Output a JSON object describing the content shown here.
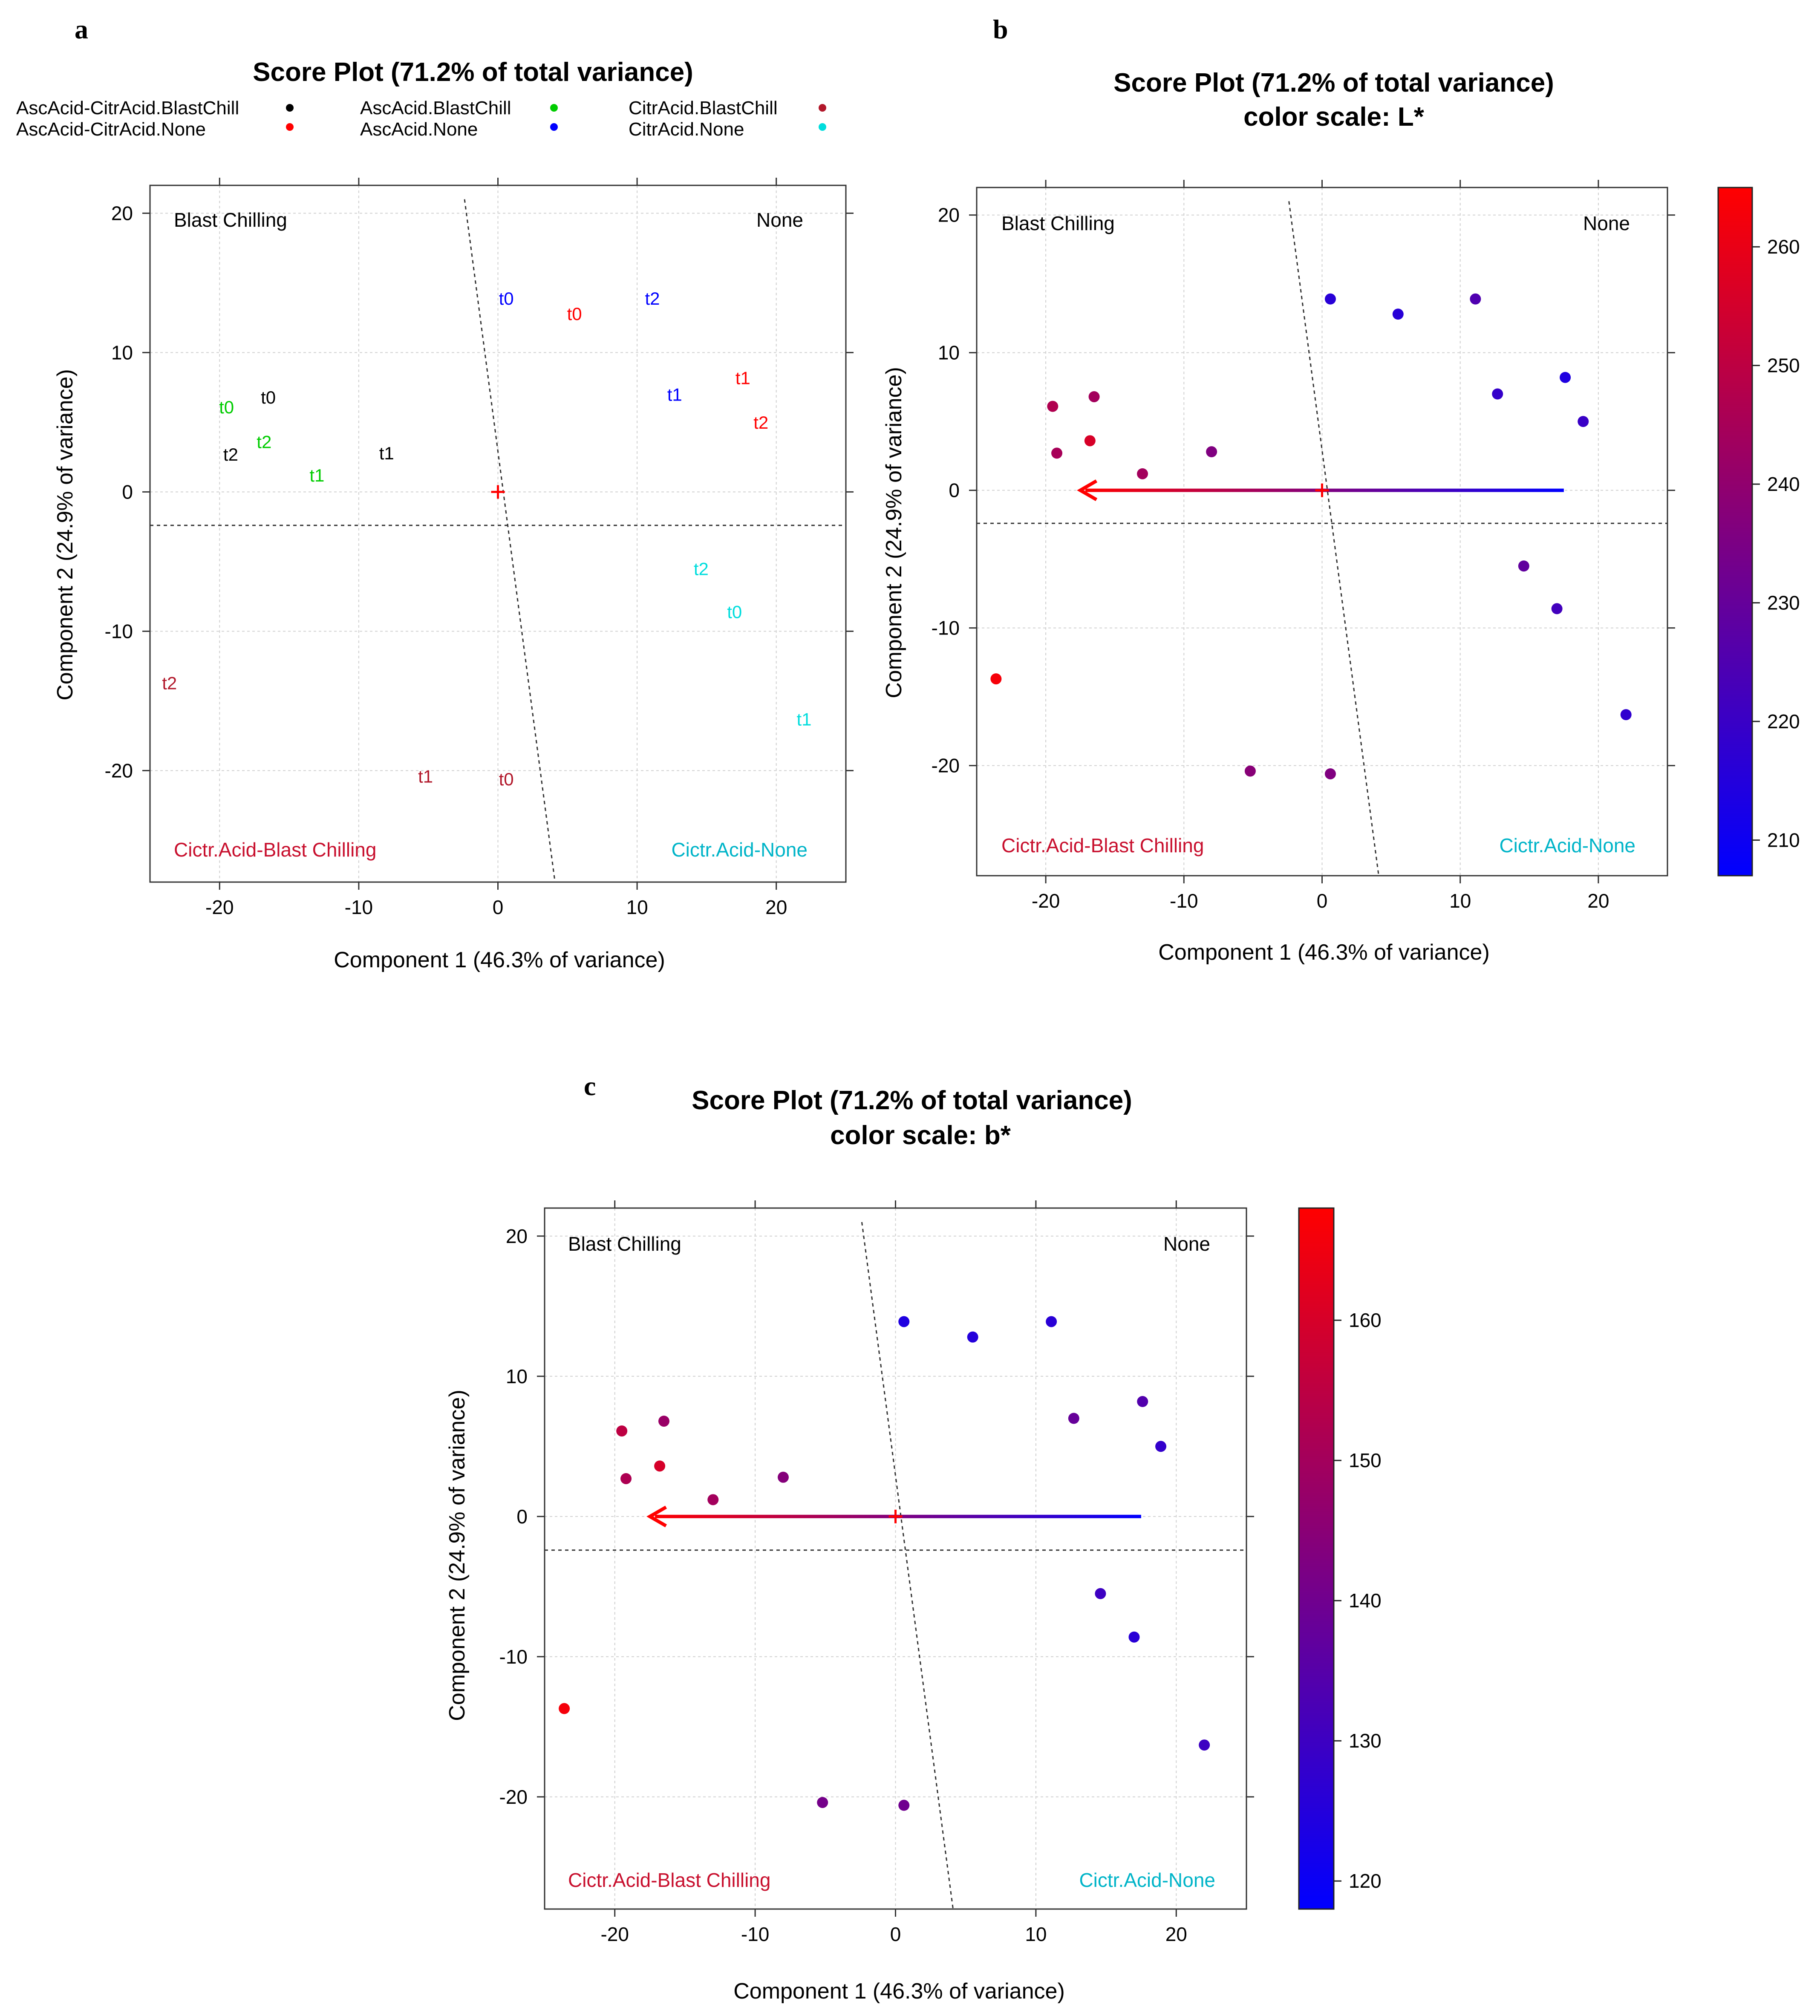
{
  "panels": {
    "a": {
      "label": "a",
      "title": "Score Plot (71.2% of total variance)",
      "subtitle": "",
      "xlabel": "Component 1 (46.3% of variance)",
      "ylabel": "Component 2 (24.9% of variance)",
      "corners": {
        "top_left": "Blast Chilling",
        "top_right": "None",
        "bottom_left": "Cictr.Acid-Blast Chilling",
        "bottom_right": "Cictr.Acid-None"
      }
    },
    "b": {
      "label": "b",
      "title": "Score Plot (71.2% of total variance)",
      "subtitle": "color scale: L*",
      "xlabel": "Component 1 (46.3% of variance)",
      "ylabel": "Component 2 (24.9% of variance)",
      "corners": {
        "top_left": "Blast Chilling",
        "top_right": "None",
        "bottom_left": "Cictr.Acid-Blast Chilling",
        "bottom_right": "Cictr.Acid-None"
      }
    },
    "c": {
      "label": "c",
      "title": "Score Plot (71.2% of total variance)",
      "subtitle": "color scale: b*",
      "xlabel": "Component 1 (46.3% of variance)",
      "ylabel": "Component 2 (24.9% of variance)",
      "corners": {
        "top_left": "Blast Chilling",
        "top_right": "None",
        "bottom_left": "Cictr.Acid-Blast Chilling",
        "bottom_right": "Cictr.Acid-None"
      }
    }
  },
  "colors": {
    "AscAcid-CitrAcid.BlastChill": "#000000",
    "AscAcid-CitrAcid.None": "#ff0000",
    "AscAcid.BlastChill": "#00cc00",
    "AscAcid.None": "#0000ff",
    "CitrAcid.BlastChill": "#b2182b",
    "CitrAcid.None": "#00dddd",
    "corner_dark": "#000000",
    "corner_red": "#c8102e",
    "corner_cyan": "#00b4c8",
    "scale_low": "#0000ff",
    "scale_high": "#ff0000"
  },
  "chart_data": [
    {
      "panel": "a",
      "type": "scatter",
      "title": "Score Plot (71.2% of total variance)",
      "xlabel": "Component 1 (46.3% of variance)",
      "ylabel": "Component 2 (24.9% of variance)",
      "xlim": [
        -25,
        25
      ],
      "ylim": [
        -28,
        22
      ],
      "xticks": [
        -20,
        -10,
        0,
        10,
        20
      ],
      "yticks": [
        -20,
        -10,
        0,
        10,
        20
      ],
      "grid": true,
      "legend": "top",
      "series": [
        {
          "name": "AscAcid-CitrAcid.BlastChill",
          "color": "#000000",
          "points": [
            {
              "x": -16.5,
              "y": 6.8,
              "label": "t0"
            },
            {
              "x": -8,
              "y": 2.8,
              "label": "t1"
            },
            {
              "x": -19.2,
              "y": 2.7,
              "label": "t2"
            }
          ]
        },
        {
          "name": "AscAcid-CitrAcid.None",
          "color": "#ff0000",
          "points": [
            {
              "x": 5.5,
              "y": 12.8,
              "label": "t0"
            },
            {
              "x": 17.6,
              "y": 8.2,
              "label": "t1"
            },
            {
              "x": 18.9,
              "y": 5.0,
              "label": "t2"
            }
          ]
        },
        {
          "name": "AscAcid.BlastChill",
          "color": "#00cc00",
          "points": [
            {
              "x": -19.5,
              "y": 6.1,
              "label": "t0"
            },
            {
              "x": -13,
              "y": 1.2,
              "label": "t1"
            },
            {
              "x": -16.8,
              "y": 3.6,
              "label": "t2"
            }
          ]
        },
        {
          "name": "AscAcid.None",
          "color": "#0000ff",
          "points": [
            {
              "x": 0.6,
              "y": 13.9,
              "label": "t0"
            },
            {
              "x": 12.7,
              "y": 7.0,
              "label": "t1"
            },
            {
              "x": 11.1,
              "y": 13.9,
              "label": "t2"
            }
          ]
        },
        {
          "name": "CitrAcid.BlastChill",
          "color": "#b2182b",
          "points": [
            {
              "x": 0.6,
              "y": -20.6,
              "label": "t0"
            },
            {
              "x": -5.2,
              "y": -20.4,
              "label": "t1"
            },
            {
              "x": -23.6,
              "y": -13.7,
              "label": "t2"
            }
          ]
        },
        {
          "name": "CitrAcid.None",
          "color": "#00dddd",
          "points": [
            {
              "x": 17.0,
              "y": -8.6,
              "label": "t0"
            },
            {
              "x": 22.0,
              "y": -16.3,
              "label": "t1"
            },
            {
              "x": 14.6,
              "y": -5.5,
              "label": "t2"
            }
          ]
        }
      ],
      "origin_marker": {
        "x": 0,
        "y": 0
      },
      "hline_y": -2.4,
      "dashed_line": [
        {
          "x": -2.4,
          "y": 21
        },
        {
          "x": 4.1,
          "y": -28
        }
      ]
    },
    {
      "panel": "b",
      "type": "scatter",
      "title": "Score Plot (71.2% of total variance)",
      "subtitle": "color scale: L*",
      "xlabel": "Component 1 (46.3% of variance)",
      "ylabel": "Component 2 (24.9% of variance)",
      "xlim": [
        -25,
        25
      ],
      "ylim": [
        -28,
        22
      ],
      "xticks": [
        -20,
        -10,
        0,
        10,
        20
      ],
      "yticks": [
        -20,
        -10,
        0,
        10,
        20
      ],
      "grid": true,
      "color_scale": {
        "label": "L*",
        "min": 207,
        "max": 265,
        "ticks": [
          210,
          220,
          230,
          240,
          250,
          260
        ]
      },
      "points": [
        {
          "x": -19.5,
          "y": 6.1,
          "v": 247
        },
        {
          "x": -16.5,
          "y": 6.8,
          "v": 244
        },
        {
          "x": -19.2,
          "y": 2.7,
          "v": 245
        },
        {
          "x": -16.8,
          "y": 3.6,
          "v": 256
        },
        {
          "x": -13.0,
          "y": 1.2,
          "v": 244
        },
        {
          "x": -8.0,
          "y": 2.8,
          "v": 236
        },
        {
          "x": 0.6,
          "y": 13.9,
          "v": 216
        },
        {
          "x": 5.5,
          "y": 12.8,
          "v": 216
        },
        {
          "x": 11.1,
          "y": 13.9,
          "v": 225
        },
        {
          "x": 12.7,
          "y": 7.0,
          "v": 219
        },
        {
          "x": 17.6,
          "y": 8.2,
          "v": 214
        },
        {
          "x": 18.9,
          "y": 5.0,
          "v": 220
        },
        {
          "x": 14.6,
          "y": -5.5,
          "v": 229
        },
        {
          "x": 17.0,
          "y": -8.6,
          "v": 222
        },
        {
          "x": 22.0,
          "y": -16.3,
          "v": 218
        },
        {
          "x": -23.6,
          "y": -13.7,
          "v": 263
        },
        {
          "x": -5.2,
          "y": -20.4,
          "v": 238
        },
        {
          "x": 0.6,
          "y": -20.6,
          "v": 236
        }
      ],
      "arrow": {
        "from": {
          "x": 17.5,
          "y": 0
        },
        "to": {
          "x": -17.5,
          "y": 0
        }
      },
      "origin_marker": {
        "x": 0,
        "y": 0
      },
      "hline_y": -2.4,
      "dashed_line": [
        {
          "x": -2.4,
          "y": 21
        },
        {
          "x": 4.1,
          "y": -28
        }
      ]
    },
    {
      "panel": "c",
      "type": "scatter",
      "title": "Score Plot (71.2% of total variance)",
      "subtitle": "color scale: b*",
      "xlabel": "Component 1 (46.3% of variance)",
      "ylabel": "Component 2 (24.9% of variance)",
      "xlim": [
        -25,
        25
      ],
      "ylim": [
        -28,
        22
      ],
      "xticks": [
        -20,
        -10,
        0,
        10,
        20
      ],
      "yticks": [
        -20,
        -10,
        0,
        10,
        20
      ],
      "grid": true,
      "color_scale": {
        "label": "b*",
        "min": 118,
        "max": 168,
        "ticks": [
          120,
          130,
          140,
          150,
          160
        ]
      },
      "points": [
        {
          "x": -19.5,
          "y": 6.1,
          "v": 155
        },
        {
          "x": -16.5,
          "y": 6.8,
          "v": 148
        },
        {
          "x": -19.2,
          "y": 2.7,
          "v": 152
        },
        {
          "x": -16.8,
          "y": 3.6,
          "v": 160
        },
        {
          "x": -13.0,
          "y": 1.2,
          "v": 150
        },
        {
          "x": -8.0,
          "y": 2.8,
          "v": 144
        },
        {
          "x": 0.6,
          "y": 13.9,
          "v": 124
        },
        {
          "x": 5.5,
          "y": 12.8,
          "v": 125
        },
        {
          "x": 11.1,
          "y": 13.9,
          "v": 126
        },
        {
          "x": 12.7,
          "y": 7.0,
          "v": 138
        },
        {
          "x": 17.6,
          "y": 8.2,
          "v": 134
        },
        {
          "x": 18.9,
          "y": 5.0,
          "v": 128
        },
        {
          "x": 14.6,
          "y": -5.5,
          "v": 130
        },
        {
          "x": 17.0,
          "y": -8.6,
          "v": 126
        },
        {
          "x": 22.0,
          "y": -16.3,
          "v": 130
        },
        {
          "x": -23.6,
          "y": -13.7,
          "v": 166
        },
        {
          "x": -5.2,
          "y": -20.4,
          "v": 141
        },
        {
          "x": 0.6,
          "y": -20.6,
          "v": 140
        }
      ],
      "arrow": {
        "from": {
          "x": 17.5,
          "y": 0
        },
        "to": {
          "x": -17.5,
          "y": 0
        }
      },
      "origin_marker": {
        "x": 0,
        "y": 0
      },
      "hline_y": -2.4,
      "dashed_line": [
        {
          "x": -2.4,
          "y": 21
        },
        {
          "x": 4.1,
          "y": -28
        }
      ]
    }
  ]
}
